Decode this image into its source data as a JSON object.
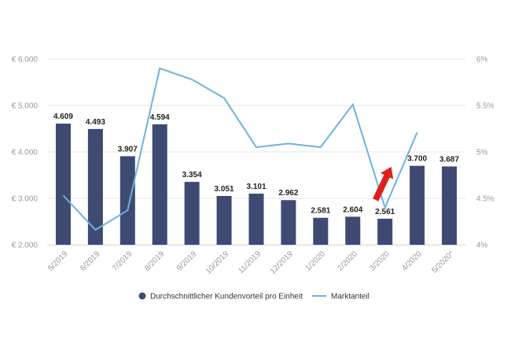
{
  "chart_data": {
    "type": "bar",
    "categories": [
      "5/2019",
      "6/2019",
      "7/2019",
      "8/2019",
      "9/2019",
      "10/2019",
      "11/2019",
      "12/2019",
      "1/2020",
      "2/2020",
      "3/2020",
      "4/2020",
      "5/2020*"
    ],
    "series": [
      {
        "name": "Durchschnittlicher Kundenvorteil pro Einheit",
        "type": "bar",
        "axis": "left",
        "color": "#3d4a72",
        "values": [
          4609,
          4493,
          3907,
          4594,
          3354,
          3051,
          3101,
          2962,
          2581,
          2604,
          2561,
          3700,
          3687
        ],
        "labels": [
          "4.609",
          "4.493",
          "3.907",
          "4.594",
          "3.354",
          "3.051",
          "3.101",
          "2.962",
          "2.581",
          "2.604",
          "2.561",
          "3.700",
          "3.687"
        ]
      },
      {
        "name": "Marktanteil",
        "type": "line",
        "axis": "right",
        "color": "#6fb3d9",
        "values": [
          4.53,
          4.16,
          4.37,
          5.9,
          5.78,
          5.58,
          5.05,
          5.09,
          5.05,
          5.51,
          4.4,
          5.21,
          null
        ]
      }
    ],
    "y_left": {
      "ylim": [
        2000,
        6000
      ],
      "ticks": [
        2000,
        3000,
        4000,
        5000,
        6000
      ],
      "tick_labels": [
        "€ 2.000",
        "€ 3.000",
        "€ 4.000",
        "€ 5.000",
        "€ 6.000"
      ]
    },
    "y_right": {
      "ylim": [
        4,
        6
      ],
      "ticks": [
        4,
        4.5,
        5,
        5.5,
        6
      ],
      "tick_labels": [
        "4%",
        "4.5%",
        "5%",
        "5.5%",
        "6%"
      ]
    },
    "grid": true,
    "legend_placement": "bottom",
    "annotation": {
      "type": "arrow",
      "color": "#e0201b",
      "direction": "up-right",
      "category_index": 10
    },
    "title": "",
    "xlabel": "",
    "ylabel": ""
  }
}
